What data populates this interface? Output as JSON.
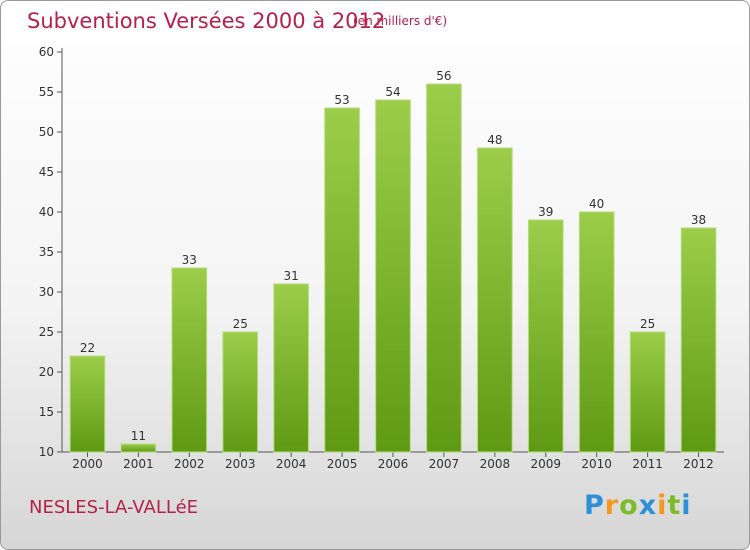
{
  "header": {
    "title": "Subventions Versées 2000 à 2012",
    "subtitle": "(en milliers d'€)"
  },
  "footer": {
    "commune": "NESLES-LA-VALLéE",
    "logo": [
      "P",
      "r",
      "o",
      "x",
      "i",
      "t",
      "i"
    ]
  },
  "colors": {
    "bar_light": "#9ccd4a",
    "bar_dark": "#5f9a14",
    "title": "#b5204f"
  },
  "chart_data": {
    "type": "bar",
    "categories": [
      "2000",
      "2001",
      "2002",
      "2003",
      "2004",
      "2005",
      "2006",
      "2007",
      "2008",
      "2009",
      "2010",
      "2011",
      "2012"
    ],
    "values": [
      22,
      11,
      33,
      25,
      31,
      53,
      54,
      56,
      48,
      39,
      40,
      25,
      38
    ],
    "ylim": [
      10,
      60
    ],
    "yticks": [
      10,
      15,
      20,
      25,
      30,
      35,
      40,
      45,
      50,
      55,
      60
    ],
    "grid": false,
    "data_labels": true
  }
}
